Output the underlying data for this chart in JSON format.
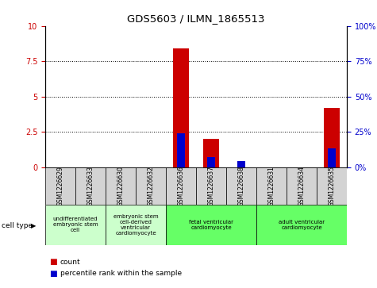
{
  "title": "GDS5603 / ILMN_1865513",
  "samples": [
    "GSM1226629",
    "GSM1226633",
    "GSM1226630",
    "GSM1226632",
    "GSM1226636",
    "GSM1226637",
    "GSM1226638",
    "GSM1226631",
    "GSM1226634",
    "GSM1226635"
  ],
  "count_values": [
    0.0,
    0.0,
    0.0,
    0.0,
    8.4,
    2.0,
    0.0,
    0.0,
    0.0,
    4.2
  ],
  "percentile_values": [
    0.0,
    0.0,
    0.0,
    0.0,
    24.0,
    7.0,
    4.0,
    0.0,
    0.0,
    13.0
  ],
  "count_color": "#cc0000",
  "percentile_color": "#0000cc",
  "ylim_left": [
    0,
    10
  ],
  "ylim_right": [
    0,
    100
  ],
  "yticks_left": [
    0,
    2.5,
    5.0,
    7.5,
    10
  ],
  "yticks_right": [
    0,
    25,
    50,
    75,
    100
  ],
  "cell_types": [
    {
      "label": "undifferentiated\nembryonic stem\ncell",
      "start": 0,
      "end": 2,
      "color": "#ccffcc"
    },
    {
      "label": "embryonic stem\ncell-derived\nventricular\ncardiomyocyte",
      "start": 2,
      "end": 4,
      "color": "#ccffcc"
    },
    {
      "label": "fetal ventricular\ncardiomyocyte",
      "start": 4,
      "end": 7,
      "color": "#66ff66"
    },
    {
      "label": "adult ventricular\ncardiomyocyte",
      "start": 7,
      "end": 10,
      "color": "#66ff66"
    }
  ],
  "background_color": "#ffffff",
  "sample_box_color": "#d3d3d3",
  "bar_width": 0.55,
  "percentile_bar_width": 0.25
}
